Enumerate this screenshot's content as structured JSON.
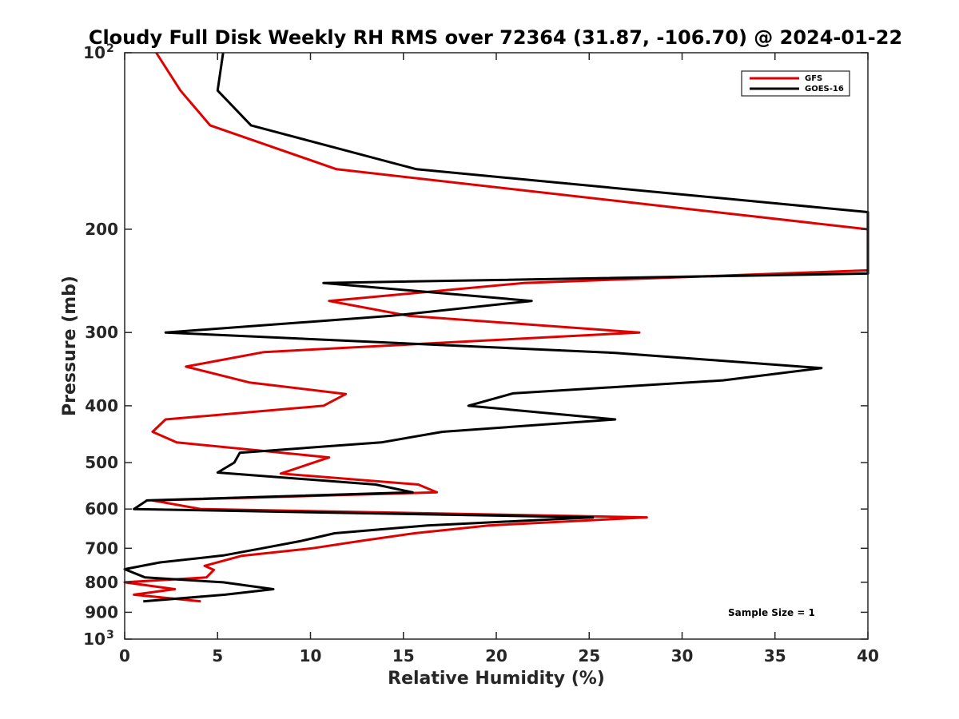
{
  "chart_data": {
    "type": "line",
    "title": "Cloudy Full Disk Weekly RH RMS over 72364 (31.87, -106.70) @ 2024-01-22",
    "xlabel": "Relative Humidity (%)",
    "ylabel": "Pressure (mb)",
    "xlim": [
      0,
      40
    ],
    "ylim": [
      100,
      1000
    ],
    "yscale": "log",
    "y_reversed": true,
    "grid": false,
    "legend_position": "top-right",
    "x_ticks": [
      0,
      5,
      10,
      15,
      20,
      25,
      30,
      35,
      40
    ],
    "x_tick_labels": [
      "0",
      "5",
      "10",
      "15",
      "20",
      "25",
      "30",
      "35",
      "40"
    ],
    "y_ticks": [
      {
        "value": 100,
        "label": "10",
        "sup": "2"
      },
      {
        "value": 200,
        "label": "200",
        "sup": ""
      },
      {
        "value": 300,
        "label": "300",
        "sup": ""
      },
      {
        "value": 400,
        "label": "400",
        "sup": ""
      },
      {
        "value": 500,
        "label": "500",
        "sup": ""
      },
      {
        "value": 600,
        "label": "600",
        "sup": ""
      },
      {
        "value": 700,
        "label": "700",
        "sup": ""
      },
      {
        "value": 800,
        "label": "800",
        "sup": ""
      },
      {
        "value": 900,
        "label": "900",
        "sup": ""
      },
      {
        "value": 1000,
        "label": "10",
        "sup": "3"
      }
    ],
    "annotation": "Sample Size = 1",
    "series": [
      {
        "name": "GFS",
        "color": "#e00000",
        "points": [
          [
            1.7,
            100
          ],
          [
            3.0,
            116
          ],
          [
            4.6,
            133
          ],
          [
            11.4,
            158
          ],
          [
            40,
            200
          ],
          [
            40,
            235
          ],
          [
            21.5,
            247
          ],
          [
            11.0,
            265
          ],
          [
            15.3,
            281
          ],
          [
            27.7,
            300
          ],
          [
            7.5,
            324
          ],
          [
            3.3,
            343
          ],
          [
            6.7,
            365
          ],
          [
            11.9,
            382
          ],
          [
            10.7,
            400
          ],
          [
            2.2,
            422
          ],
          [
            1.5,
            443
          ],
          [
            2.8,
            462
          ],
          [
            11.0,
            490
          ],
          [
            8.4,
            522
          ],
          [
            15.8,
            545
          ],
          [
            16.8,
            562
          ],
          [
            1.5,
            580
          ],
          [
            4.1,
            600
          ],
          [
            28.1,
            620
          ],
          [
            19.6,
            640
          ],
          [
            15.6,
            660
          ],
          [
            12.7,
            680
          ],
          [
            10.1,
            700
          ],
          [
            6.3,
            721
          ],
          [
            4.3,
            750
          ],
          [
            4.8,
            762
          ],
          [
            4.4,
            785
          ],
          [
            0.0,
            800
          ],
          [
            2.7,
            822
          ],
          [
            0.5,
            840
          ],
          [
            4.1,
            862
          ]
        ]
      },
      {
        "name": "GOES-16",
        "color": "#000000",
        "points": [
          [
            5.3,
            100
          ],
          [
            5.0,
            116
          ],
          [
            6.8,
            133
          ],
          [
            15.7,
            158
          ],
          [
            40,
            187
          ],
          [
            40,
            238
          ],
          [
            10.7,
            247
          ],
          [
            21.9,
            265
          ],
          [
            14.3,
            281
          ],
          [
            2.2,
            300
          ],
          [
            26.4,
            325
          ],
          [
            37.5,
            345
          ],
          [
            32.2,
            362
          ],
          [
            20.9,
            381
          ],
          [
            18.5,
            400
          ],
          [
            26.4,
            422
          ],
          [
            17.1,
            443
          ],
          [
            13.8,
            462
          ],
          [
            6.2,
            481
          ],
          [
            5.9,
            500
          ],
          [
            5.0,
            520
          ],
          [
            13.5,
            545
          ],
          [
            15.5,
            562
          ],
          [
            1.2,
            580
          ],
          [
            0.5,
            600
          ],
          [
            25.2,
            620
          ],
          [
            16.3,
            640
          ],
          [
            11.3,
            660
          ],
          [
            9.5,
            680
          ],
          [
            7.4,
            700
          ],
          [
            5.3,
            720
          ],
          [
            1.9,
            740
          ],
          [
            0.0,
            760
          ],
          [
            1.1,
            785
          ],
          [
            5.3,
            800
          ],
          [
            8.0,
            822
          ],
          [
            5.4,
            840
          ],
          [
            1.0,
            862
          ]
        ]
      }
    ]
  }
}
